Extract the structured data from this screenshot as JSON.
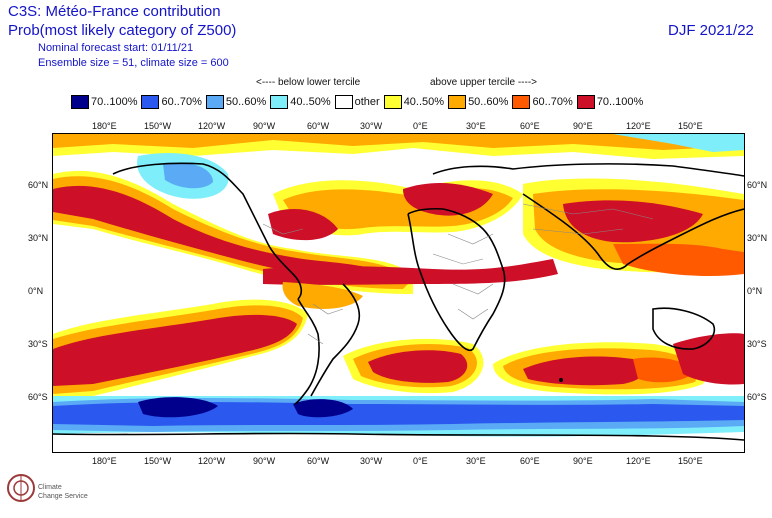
{
  "header": {
    "title_line1": "C3S: Météo-France contribution",
    "title_line2": "Prob(most likely category of Z500)",
    "forecast_start": "Nominal forecast start: 01/11/21",
    "ensemble": "Ensemble size = 51, climate size = 600",
    "season": "DJF 2021/22"
  },
  "legend": {
    "below_header": "<---- below lower tercile",
    "above_header": "above upper tercile ---->",
    "items": [
      {
        "label": "70..100%",
        "color": "#00008c"
      },
      {
        "label": "60..70%",
        "color": "#2b59f0"
      },
      {
        "label": "50..60%",
        "color": "#5aaaf5"
      },
      {
        "label": "40..50%",
        "color": "#7deefa"
      },
      {
        "label": "other",
        "color": "#ffffff"
      },
      {
        "label": "40..50%",
        "color": "#ffff32"
      },
      {
        "label": "50..60%",
        "color": "#ffaa00"
      },
      {
        "label": "60..70%",
        "color": "#ff5a00"
      },
      {
        "label": "70..100%",
        "color": "#cd0f28"
      }
    ]
  },
  "axes": {
    "lon_labels": [
      "180°E",
      "150°W",
      "120°W",
      "90°W",
      "60°W",
      "30°W",
      "0°E",
      "30°E",
      "60°E",
      "90°E",
      "120°E",
      "150°E"
    ],
    "lat_labels": [
      "60°N",
      "30°N",
      "0°N",
      "30°S",
      "60°S"
    ]
  },
  "logo": {
    "line1": "Climate",
    "line2": "Change Service"
  }
}
